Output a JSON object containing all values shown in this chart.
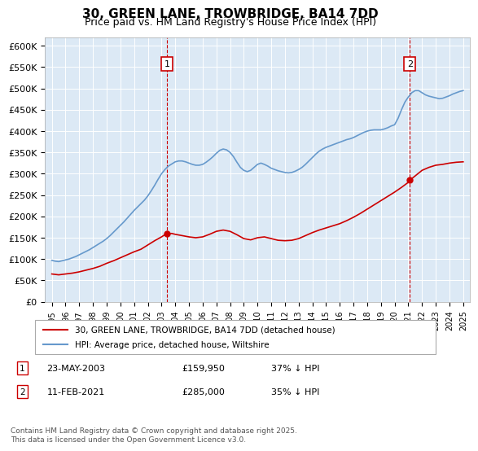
{
  "title": "30, GREEN LANE, TROWBRIDGE, BA14 7DD",
  "subtitle": "Price paid vs. HM Land Registry's House Price Index (HPI)",
  "bg_color": "#dce9f5",
  "plot_bg_color": "#dce9f5",
  "red_color": "#cc0000",
  "blue_color": "#6699cc",
  "ylim": [
    0,
    620000
  ],
  "yticks": [
    0,
    50000,
    100000,
    150000,
    200000,
    250000,
    300000,
    350000,
    400000,
    450000,
    500000,
    550000,
    600000
  ],
  "ytick_labels": [
    "£0",
    "£50K",
    "£100K",
    "£150K",
    "£200K",
    "£250K",
    "£300K",
    "£350K",
    "£400K",
    "£450K",
    "£500K",
    "£550K",
    "£600K"
  ],
  "xlim": [
    1994.5,
    2025.5
  ],
  "xticks": [
    1995,
    1996,
    1997,
    1998,
    1999,
    2000,
    2001,
    2002,
    2003,
    2004,
    2005,
    2006,
    2007,
    2008,
    2009,
    2010,
    2011,
    2012,
    2013,
    2014,
    2015,
    2016,
    2017,
    2018,
    2019,
    2020,
    2021,
    2022,
    2023,
    2024,
    2025
  ],
  "sale1_x": 2003.39,
  "sale1_y": 159950,
  "sale1_label": "1",
  "sale2_x": 2021.11,
  "sale2_y": 285000,
  "sale2_label": "2",
  "legend_red": "30, GREEN LANE, TROWBRIDGE, BA14 7DD (detached house)",
  "legend_blue": "HPI: Average price, detached house, Wiltshire",
  "annotation1": "1    23-MAY-2003         £159,950          37% ↓ HPI",
  "annotation2": "2    11-FEB-2021           £285,000          35% ↓ HPI",
  "footer": "Contains HM Land Registry data © Crown copyright and database right 2025.\nThis data is licensed under the Open Government Licence v3.0.",
  "hpi_years": [
    1995.0,
    1995.25,
    1995.5,
    1995.75,
    1996.0,
    1996.25,
    1996.5,
    1996.75,
    1997.0,
    1997.25,
    1997.5,
    1997.75,
    1998.0,
    1998.25,
    1998.5,
    1998.75,
    1999.0,
    1999.25,
    1999.5,
    1999.75,
    2000.0,
    2000.25,
    2000.5,
    2000.75,
    2001.0,
    2001.25,
    2001.5,
    2001.75,
    2002.0,
    2002.25,
    2002.5,
    2002.75,
    2003.0,
    2003.25,
    2003.5,
    2003.75,
    2004.0,
    2004.25,
    2004.5,
    2004.75,
    2005.0,
    2005.25,
    2005.5,
    2005.75,
    2006.0,
    2006.25,
    2006.5,
    2006.75,
    2007.0,
    2007.25,
    2007.5,
    2007.75,
    2008.0,
    2008.25,
    2008.5,
    2008.75,
    2009.0,
    2009.25,
    2009.5,
    2009.75,
    2010.0,
    2010.25,
    2010.5,
    2010.75,
    2011.0,
    2011.25,
    2011.5,
    2011.75,
    2012.0,
    2012.25,
    2012.5,
    2012.75,
    2013.0,
    2013.25,
    2013.5,
    2013.75,
    2014.0,
    2014.25,
    2014.5,
    2014.75,
    2015.0,
    2015.25,
    2015.5,
    2015.75,
    2016.0,
    2016.25,
    2016.5,
    2016.75,
    2017.0,
    2017.25,
    2017.5,
    2017.75,
    2018.0,
    2018.25,
    2018.5,
    2018.75,
    2019.0,
    2019.25,
    2019.5,
    2019.75,
    2020.0,
    2020.25,
    2020.5,
    2020.75,
    2021.0,
    2021.25,
    2021.5,
    2021.75,
    2022.0,
    2022.25,
    2022.5,
    2022.75,
    2023.0,
    2023.25,
    2023.5,
    2023.75,
    2024.0,
    2024.25,
    2024.5,
    2024.75,
    2025.0
  ],
  "hpi_values": [
    97000,
    95000,
    94000,
    96000,
    98000,
    100000,
    103000,
    106000,
    110000,
    114000,
    118000,
    122000,
    127000,
    132000,
    137000,
    142000,
    148000,
    155000,
    163000,
    171000,
    179000,
    187000,
    196000,
    205000,
    214000,
    222000,
    230000,
    238000,
    248000,
    260000,
    273000,
    287000,
    300000,
    310000,
    318000,
    323000,
    328000,
    330000,
    330000,
    328000,
    325000,
    322000,
    320000,
    320000,
    322000,
    327000,
    333000,
    340000,
    348000,
    355000,
    358000,
    356000,
    350000,
    340000,
    327000,
    315000,
    308000,
    305000,
    308000,
    315000,
    322000,
    325000,
    322000,
    318000,
    313000,
    310000,
    307000,
    305000,
    303000,
    302000,
    303000,
    306000,
    310000,
    315000,
    322000,
    330000,
    338000,
    346000,
    353000,
    358000,
    362000,
    365000,
    368000,
    371000,
    374000,
    377000,
    380000,
    382000,
    385000,
    389000,
    393000,
    397000,
    400000,
    402000,
    403000,
    403000,
    403000,
    405000,
    408000,
    412000,
    415000,
    430000,
    450000,
    468000,
    480000,
    490000,
    495000,
    495000,
    490000,
    485000,
    482000,
    480000,
    478000,
    476000,
    477000,
    480000,
    483000,
    487000,
    490000,
    493000,
    495000
  ],
  "red_years": [
    1995.0,
    1995.5,
    1996.0,
    1996.5,
    1997.0,
    1997.5,
    1998.0,
    1998.5,
    1999.0,
    1999.5,
    2000.0,
    2000.5,
    2001.0,
    2001.5,
    2002.0,
    2002.5,
    2003.0,
    2003.39,
    2003.75,
    2004.0,
    2004.5,
    2005.0,
    2005.5,
    2006.0,
    2006.5,
    2007.0,
    2007.5,
    2008.0,
    2008.5,
    2009.0,
    2009.5,
    2010.0,
    2010.5,
    2011.0,
    2011.5,
    2012.0,
    2012.5,
    2013.0,
    2013.5,
    2014.0,
    2014.5,
    2015.0,
    2015.5,
    2016.0,
    2016.5,
    2017.0,
    2017.5,
    2018.0,
    2018.5,
    2019.0,
    2019.5,
    2020.0,
    2020.5,
    2021.0,
    2021.11,
    2021.5,
    2022.0,
    2022.5,
    2023.0,
    2023.5,
    2024.0,
    2024.5,
    2025.0
  ],
  "red_values": [
    65000,
    63000,
    65000,
    67000,
    70000,
    74000,
    78000,
    83000,
    90000,
    96000,
    103000,
    110000,
    117000,
    123000,
    133000,
    143000,
    152000,
    159950,
    160000,
    158000,
    155000,
    152000,
    150000,
    152000,
    158000,
    165000,
    168000,
    165000,
    157000,
    148000,
    145000,
    150000,
    152000,
    148000,
    144000,
    143000,
    144000,
    148000,
    155000,
    162000,
    168000,
    173000,
    178000,
    183000,
    190000,
    198000,
    207000,
    217000,
    227000,
    237000,
    247000,
    257000,
    268000,
    280000,
    285000,
    295000,
    308000,
    315000,
    320000,
    322000,
    325000,
    327000,
    328000
  ]
}
